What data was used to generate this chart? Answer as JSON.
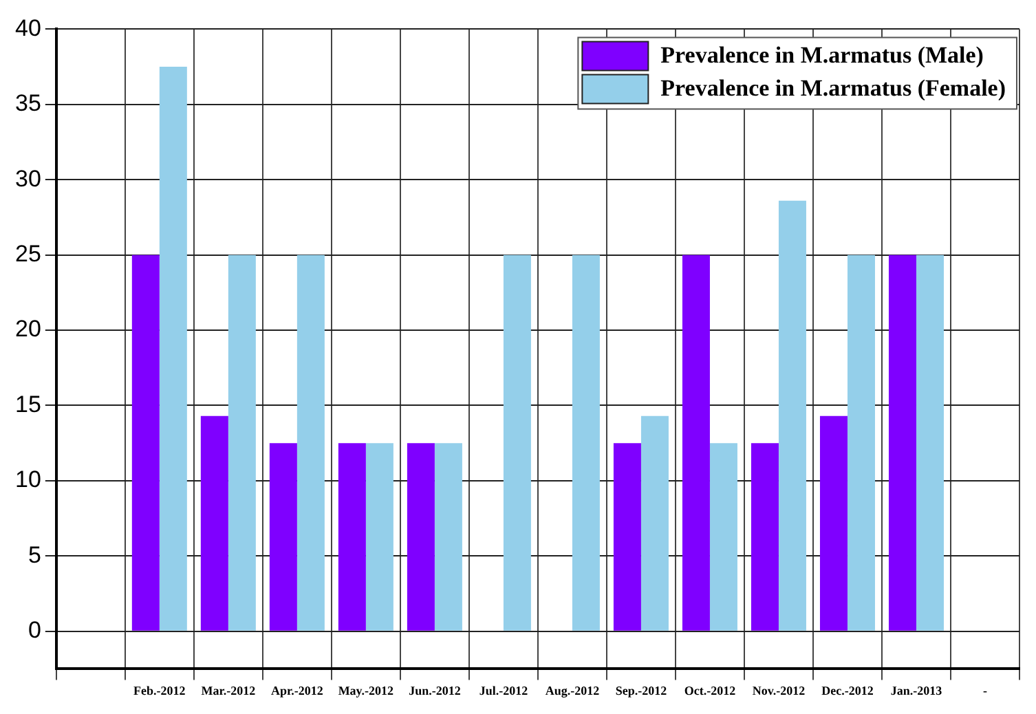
{
  "chart_data": {
    "type": "bar",
    "categories": [
      null,
      "Feb.-2012",
      "Mar.-2012",
      "Apr.-2012",
      "May.-2012",
      "Jun.-2012",
      "Jul.-2012",
      "Aug.-2012",
      "Sep.-2012",
      "Oct.-2012",
      "Nov.-2012",
      "Dec.-2012",
      "Jan.-2013",
      "-"
    ],
    "series": [
      {
        "name": "Prevalence in M.armatus (Male)",
        "color": "#7f00ff",
        "values": [
          null,
          25,
          14.3,
          12.5,
          12.5,
          12.5,
          0,
          0,
          12.5,
          25,
          12.5,
          14.3,
          25,
          null
        ]
      },
      {
        "name": "Prevalence in M.armatus (Female)",
        "color": "#94cfea",
        "values": [
          null,
          37.5,
          25,
          25,
          12.5,
          12.5,
          25,
          25,
          14.3,
          12.5,
          28.6,
          25,
          25,
          null
        ]
      }
    ],
    "ylim": [
      -2.5,
      40
    ],
    "yticks": [
      0,
      5,
      10,
      15,
      20,
      25,
      30,
      35,
      40
    ],
    "grid": true,
    "legend": "top right"
  }
}
